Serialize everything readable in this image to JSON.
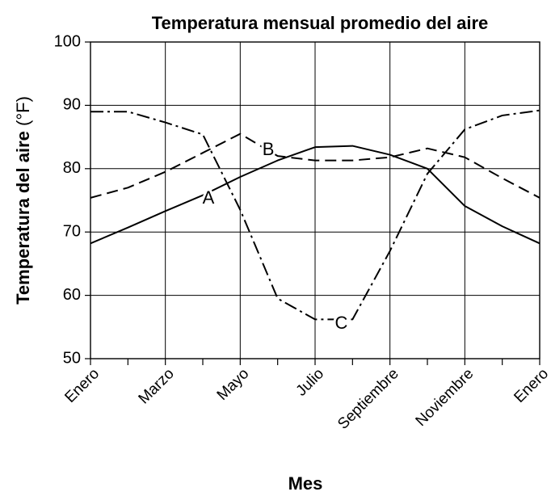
{
  "chart_data": {
    "type": "line",
    "title": "Temperatura mensual promedio del aire",
    "x_label": "Mes",
    "y_label": {
      "text": "Temperatura del aire",
      "unit": "(°F)"
    },
    "categories": [
      "Enero",
      null,
      "Marzo",
      null,
      "Mayo",
      null,
      "Julio",
      null,
      "Septiembre",
      null,
      "Noviembre",
      null,
      "Enero"
    ],
    "series": [
      {
        "name": "A",
        "color": "#000000",
        "dash": "solid",
        "values": [
          68.2,
          70.7,
          73.3,
          75.8,
          78.7,
          81.3,
          83.4,
          83.6,
          82.2,
          80.0,
          74.1,
          70.9,
          68.2
        ]
      },
      {
        "name": "B",
        "color": "#000000",
        "dash": "dashed",
        "values": [
          75.4,
          77.0,
          79.5,
          82.5,
          85.5,
          82.0,
          81.3,
          81.3,
          81.8,
          83.2,
          81.8,
          78.5,
          75.4
        ]
      },
      {
        "name": "C",
        "color": "#000000",
        "dash": "dashdot",
        "values": [
          89.0,
          89.0,
          87.3,
          85.4,
          73.5,
          59.5,
          56.2,
          56.2,
          67.0,
          79.2,
          86.2,
          88.4,
          89.2
        ]
      }
    ],
    "ylim": [
      50,
      100
    ],
    "yticks": [
      50,
      60,
      70,
      80,
      90,
      100
    ],
    "grid": true
  }
}
